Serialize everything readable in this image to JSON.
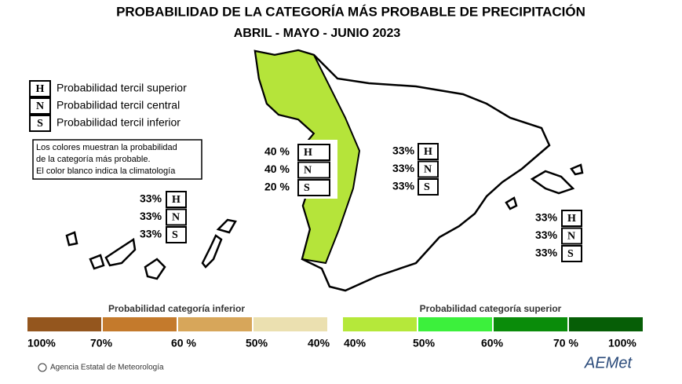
{
  "title": "PROBABILIDAD DE LA  CATEGORÍA MÁS PROBABLE DE PRECIPITACIÓN",
  "subtitle": "ABRIL - MAYO - JUNIO 2023",
  "legend": [
    {
      "letter": "H",
      "text": "Probabilidad  tercil superior"
    },
    {
      "letter": "N",
      "text": "Probabilidad  tercil central"
    },
    {
      "letter": "S",
      "text": "Probabilidad  tercil inferior"
    }
  ],
  "note": [
    "Los colores muestran la probabilidad",
    "de la categoría más probable.",
    "El color blanco indica la climatología"
  ],
  "regions": [
    {
      "probabilities": [
        "40 %",
        "40 %",
        "20 %"
      ],
      "letters": [
        "H",
        "N",
        "S"
      ]
    },
    {
      "probabilities": [
        "33%",
        "33%",
        "33%"
      ],
      "letters": [
        "H",
        "N",
        "S"
      ]
    },
    {
      "probabilities": [
        "33%",
        "33%",
        "33%"
      ],
      "letters": [
        "H",
        "N",
        "S"
      ]
    },
    {
      "probabilities": [
        "33%",
        "33%",
        "33%"
      ],
      "letters": [
        "H",
        "N",
        "S"
      ]
    }
  ],
  "scale_lower": {
    "title": "Probabilidad categoría inferior",
    "labels": [
      "100%",
      "70%",
      "60 %",
      "50%",
      "40%"
    ]
  },
  "scale_upper": {
    "title": "Probabilidad categoría superior",
    "labels": [
      "40%",
      "50%",
      "60%",
      "70 %",
      "100%"
    ]
  },
  "footer": {
    "agency": "Agencia Estatal de Meteorología",
    "logo": "AEMet"
  }
}
